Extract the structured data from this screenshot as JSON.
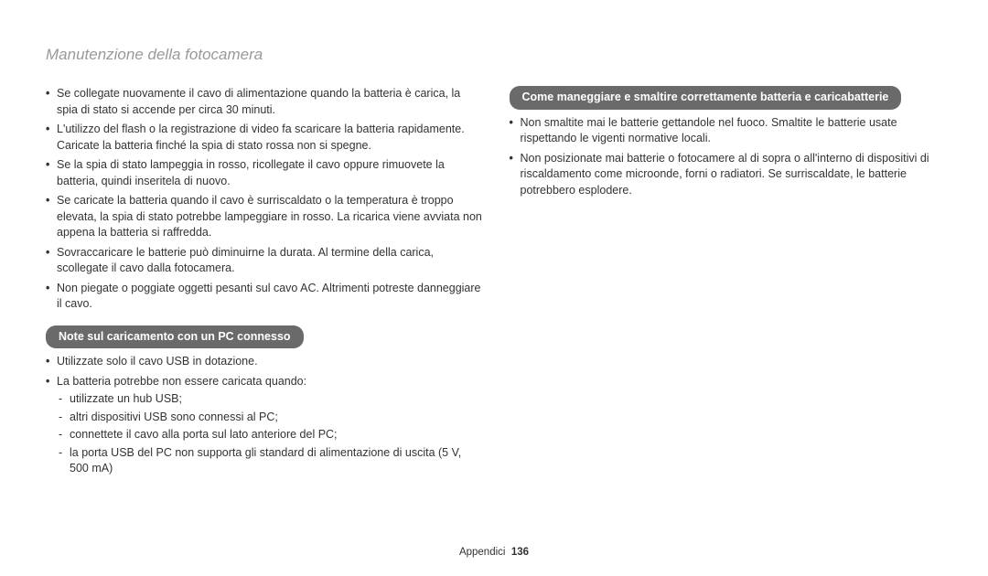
{
  "page": {
    "title": "Manutenzione della fotocamera",
    "footer_label": "Appendici",
    "footer_page": "136"
  },
  "left": {
    "bullets": [
      "Se collegate nuovamente il cavo di alimentazione quando la batteria è carica, la spia di stato si accende per circa 30 minuti.",
      "L'utilizzo del flash o la registrazione di video fa scaricare la batteria rapidamente. Caricate la batteria finché la spia di stato rossa non si spegne.",
      "Se la spia di stato lampeggia in rosso, ricollegate il cavo oppure rimuovete la batteria, quindi inseritela di nuovo.",
      "Se caricate la batteria quando il cavo è surriscaldato o la temperatura è troppo elevata, la spia di stato potrebbe lampeggiare in rosso. La ricarica viene avviata non appena la batteria si raffredda.",
      "Sovraccaricare le batterie può diminuirne la durata. Al termine della carica, scollegate il cavo dalla fotocamera.",
      "Non piegate o poggiate oggetti pesanti sul cavo AC. Altrimenti potreste danneggiare il cavo."
    ],
    "section_header": "Note sul caricamento con un PC connesso",
    "section_bullets": [
      "Utilizzate solo il cavo USB in dotazione.",
      "La batteria potrebbe non essere caricata quando:"
    ],
    "dashes": [
      "utilizzate un hub USB;",
      "altri dispositivi USB sono connessi al PC;",
      "connettete il cavo alla porta sul lato anteriore del PC;",
      "la porta USB del PC non supporta gli standard di alimentazione di uscita (5 V, 500 mA)"
    ]
  },
  "right": {
    "section_header": "Come maneggiare e smaltire correttamente batteria e caricabatterie",
    "bullets": [
      "Non smaltite mai le batterie gettandole nel fuoco. Smaltite le batterie usate rispettando le vigenti normative locali.",
      "Non posizionate mai batterie o fotocamere al di sopra o all'interno di dispositivi di riscaldamento come microonde, forni o radiatori. Se surriscaldate, le batterie potrebbero esplodere."
    ]
  },
  "colors": {
    "title": "#999999",
    "text": "#333333",
    "header_bg": "#6a6a6a",
    "header_fg": "#ffffff",
    "background": "#ffffff"
  },
  "typography": {
    "title_fontsize": 17,
    "body_fontsize": 12.5,
    "footer_fontsize": 11.5
  }
}
